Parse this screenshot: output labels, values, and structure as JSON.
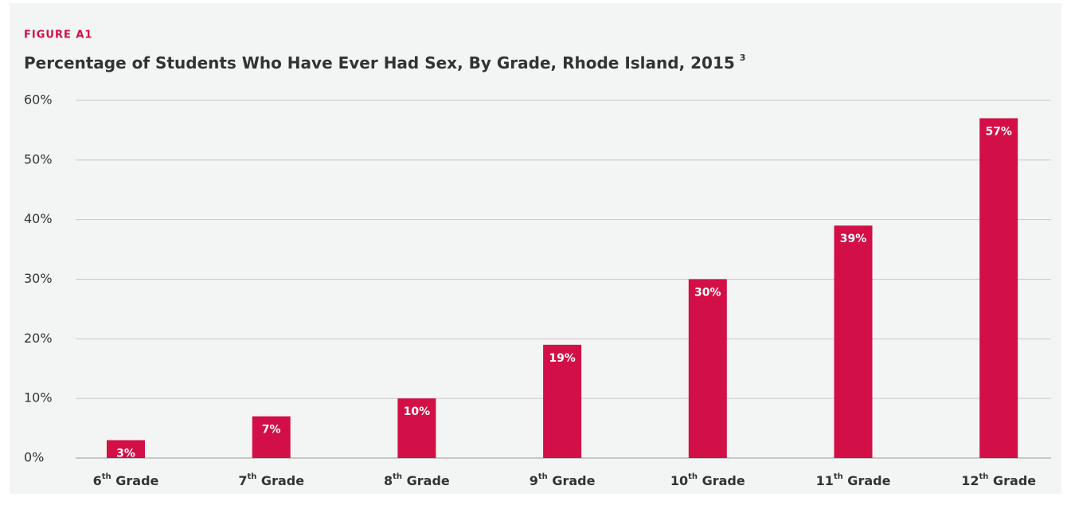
{
  "chart_data": {
    "type": "bar",
    "figure_label": "FIGURE A1",
    "title": "Percentage of Students Who Have Ever Had Sex, By Grade, Rhode Island, 2015",
    "title_note": "3",
    "categories": [
      "6th Grade",
      "7th Grade",
      "8th Grade",
      "9th Grade",
      "10th Grade",
      "11th Grade",
      "12th Grade"
    ],
    "values": [
      3,
      7,
      10,
      19,
      30,
      39,
      57
    ],
    "value_labels": [
      "3%",
      "7%",
      "10%",
      "19%",
      "30%",
      "39%",
      "57%"
    ],
    "color": "#d20f46",
    "ylim": [
      0,
      60
    ],
    "yticks": [
      {
        "value": 0,
        "label": "0%"
      },
      {
        "value": 10,
        "label": "10%"
      },
      {
        "value": 20,
        "label": "20%"
      },
      {
        "value": 30,
        "label": "30%"
      },
      {
        "value": 40,
        "label": "40%"
      },
      {
        "value": 50,
        "label": "50%"
      },
      {
        "value": 60,
        "label": "60%"
      }
    ],
    "grid": true
  }
}
